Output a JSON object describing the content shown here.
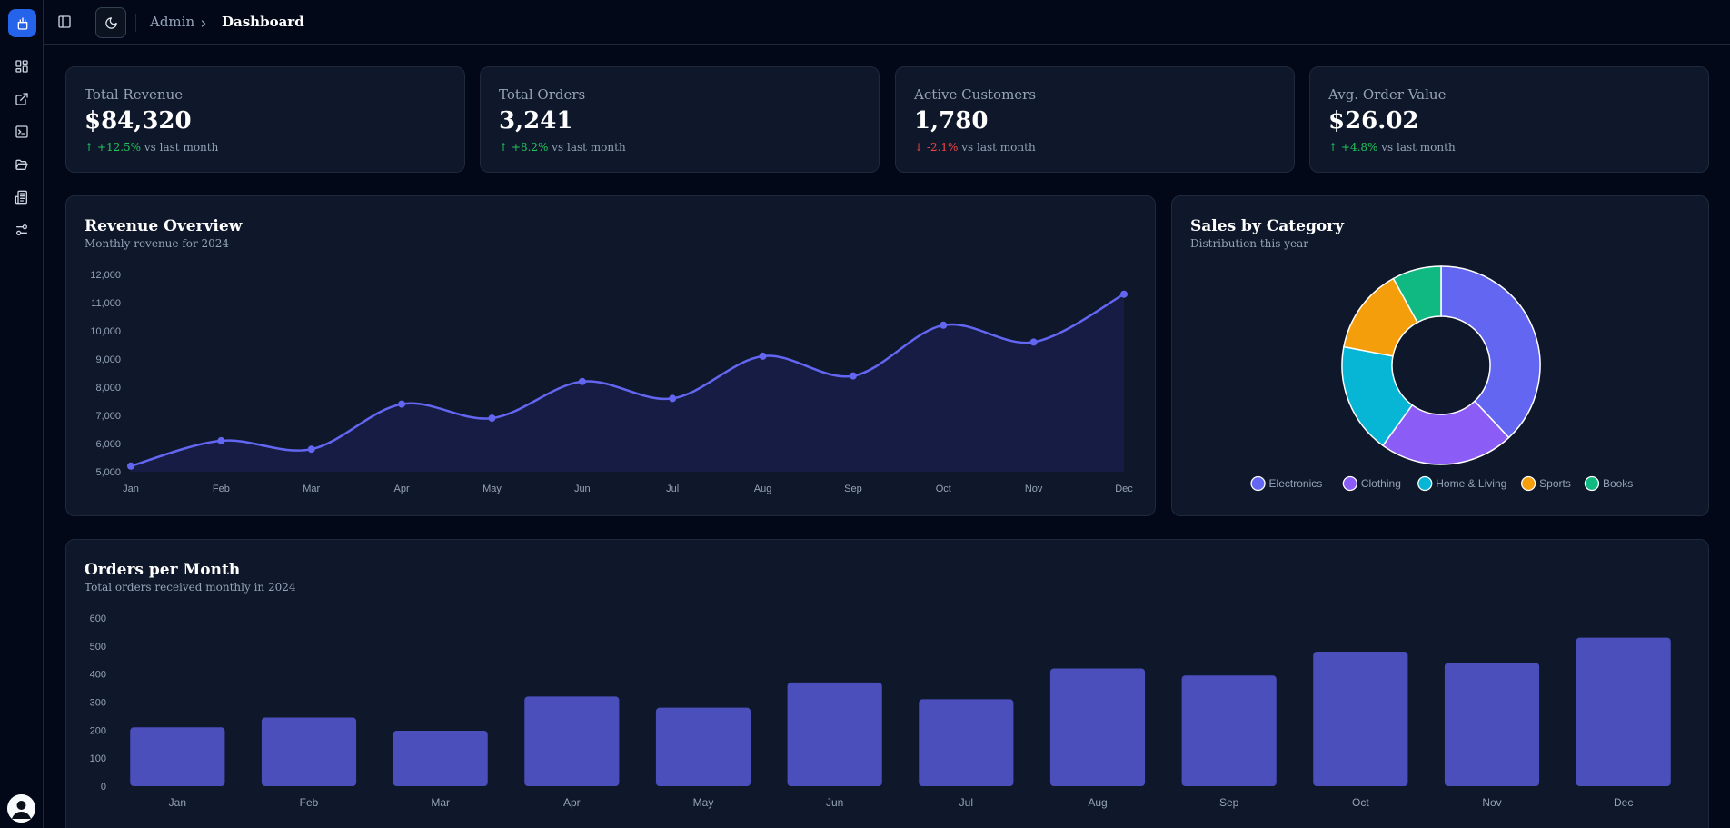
{
  "sidebar": {
    "icons": [
      "app-logo-icon",
      "dashboard-icon",
      "external-link-icon",
      "terminal-icon",
      "folder-open-icon",
      "newspaper-icon",
      "settings-sliders-icon"
    ],
    "user": "user-avatar"
  },
  "topbar": {
    "breadcrumb": [
      "Admin",
      "Dashboard"
    ]
  },
  "stats": [
    {
      "label": "Total Revenue",
      "value": "$84,320",
      "arrow": "↑",
      "change": "+12.5%",
      "suffix": "vs last month",
      "trend": "up"
    },
    {
      "label": "Total Orders",
      "value": "3,241",
      "arrow": "↑",
      "change": "+8.2%",
      "suffix": "vs last month",
      "trend": "up"
    },
    {
      "label": "Active Customers",
      "value": "1,780",
      "arrow": "↓",
      "change": "-2.1%",
      "suffix": "vs last month",
      "trend": "down"
    },
    {
      "label": "Avg. Order Value",
      "value": "$26.02",
      "arrow": "↑",
      "change": "+4.8%",
      "suffix": "vs last month",
      "trend": "up"
    }
  ],
  "revenue": {
    "title": "Revenue Overview",
    "subtitle": "Monthly revenue for 2024"
  },
  "sales": {
    "title": "Sales by Category",
    "subtitle": "Distribution this year"
  },
  "orders": {
    "title": "Orders per Month",
    "subtitle": "Total orders received monthly in 2024"
  },
  "colors": {
    "accent": "#6366f1",
    "bar": "#4b4fbc",
    "up": "#22c55e",
    "down": "#ef4444"
  },
  "chart_data": [
    {
      "type": "line",
      "x": [
        "Jan",
        "Feb",
        "Mar",
        "Apr",
        "May",
        "Jun",
        "Jul",
        "Aug",
        "Sep",
        "Oct",
        "Nov",
        "Dec"
      ],
      "y_ticks": [
        "5,000",
        "6,000",
        "7,000",
        "8,000",
        "9,000",
        "10,000",
        "11,000",
        "12,000"
      ],
      "series": [
        {
          "values": [
            5200,
            6100,
            5800,
            7400,
            6900,
            8200,
            7600,
            9100,
            8400,
            10200,
            9600,
            11300
          ]
        }
      ],
      "ylim": [
        5000,
        12000
      ],
      "area_fill": true,
      "color": "#6366f1"
    },
    {
      "type": "pie",
      "donut": true,
      "labels": [
        "Electronics",
        "Clothing",
        "Home & Living",
        "Sports",
        "Books"
      ],
      "values": [
        38,
        22,
        18,
        14,
        8
      ],
      "colors": [
        "#6366f1",
        "#8b5cf6",
        "#06b6d4",
        "#f59e0b",
        "#10b981"
      ],
      "legend": "bottom"
    },
    {
      "type": "bar",
      "categories": [
        "Jan",
        "Feb",
        "Mar",
        "Apr",
        "May",
        "Jun",
        "Jul",
        "Aug",
        "Sep",
        "Oct",
        "Nov",
        "Dec"
      ],
      "y_ticks": [
        "0",
        "100",
        "200",
        "300",
        "400",
        "500",
        "600"
      ],
      "values": [
        210,
        245,
        198,
        320,
        280,
        370,
        310,
        420,
        395,
        480,
        440,
        530
      ],
      "ylim": [
        0,
        600
      ],
      "color": "#4b4fbc"
    }
  ]
}
